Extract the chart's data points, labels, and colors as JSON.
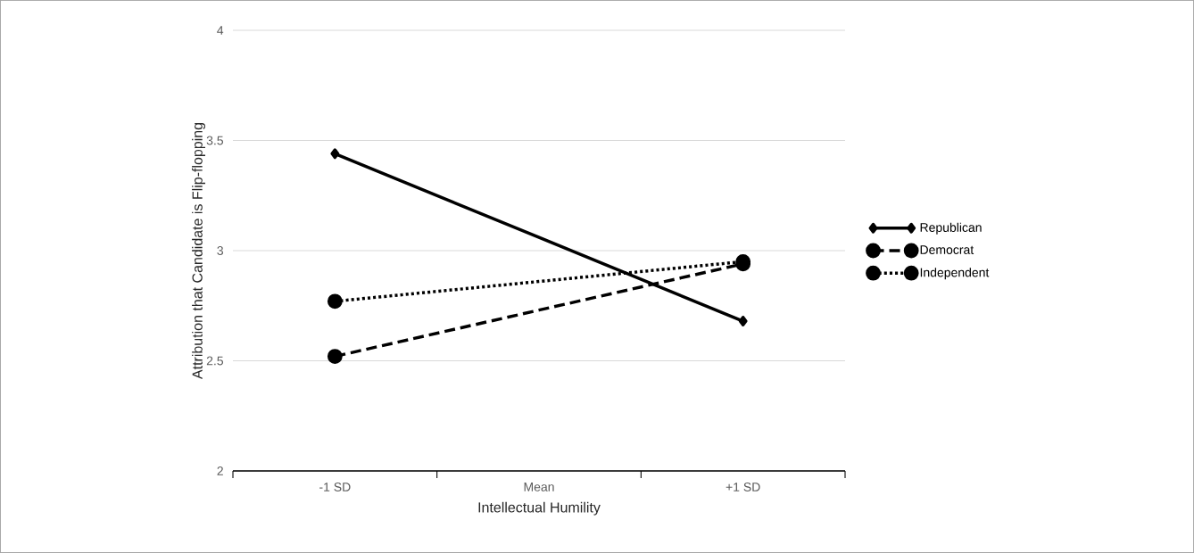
{
  "chart_data": {
    "type": "line",
    "xlabel": "Intellectual Humility",
    "ylabel": "Attribution that Candidate is Flip-flopping",
    "categories": [
      "-1 SD",
      "Mean",
      "+1 SD"
    ],
    "series": [
      {
        "name": "Republican",
        "color": "#000000",
        "values": [
          3.44,
          3.06,
          2.68
        ],
        "marker": "diamond",
        "line_style": "solid"
      },
      {
        "name": "Democrat",
        "color": "#000000",
        "values": [
          2.52,
          2.73,
          2.94
        ],
        "marker": "circle",
        "line_style": "dashed"
      },
      {
        "name": "Independent",
        "color": "#000000",
        "values": [
          2.77,
          2.86,
          2.95
        ],
        "marker": "circle",
        "line_style": "dotted"
      }
    ],
    "ylim": [
      2,
      4
    ],
    "yticks": [
      2,
      2.5,
      3,
      3.5,
      4
    ],
    "grid": "y",
    "legend": "right"
  }
}
